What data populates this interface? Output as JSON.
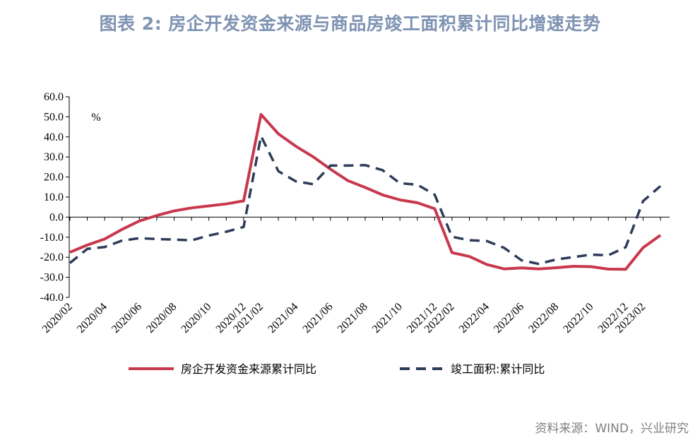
{
  "header": {
    "title": "图表 2:  房企开发资金来源与商品房竣工面积累计同比增速走势"
  },
  "footer": {
    "source": "资料来源：WIND，兴业研究"
  },
  "colors": {
    "series1": "#c8384d",
    "series2": "#2e3c58",
    "title": "#7f93b3"
  },
  "chart_data": {
    "type": "line",
    "unit_label": "%",
    "ylim": [
      -40,
      60
    ],
    "y_ticks": [
      "60.0",
      "50.0",
      "40.0",
      "30.0",
      "20.0",
      "10.0",
      "0.0",
      "-10.0",
      "-20.0",
      "-30.0",
      "-40.0"
    ],
    "x": [
      "2020/02",
      "2020/03",
      "2020/04",
      "2020/05",
      "2020/06",
      "2020/07",
      "2020/08",
      "2020/09",
      "2020/10",
      "2020/11",
      "2020/12",
      "2021/02",
      "2021/03",
      "2021/04",
      "2021/05",
      "2021/06",
      "2021/07",
      "2021/08",
      "2021/09",
      "2021/10",
      "2021/11",
      "2021/12",
      "2022/02",
      "2022/03",
      "2022/04",
      "2022/05",
      "2022/06",
      "2022/07",
      "2022/08",
      "2022/09",
      "2022/10",
      "2022/11",
      "2022/12",
      "2023/02",
      "2023/03"
    ],
    "x_tick_labels": [
      "2020/02",
      "2020/04",
      "2020/06",
      "2020/08",
      "2020/10",
      "2020/12",
      "2021/02",
      "2021/04",
      "2021/06",
      "2021/08",
      "2021/10",
      "2021/12",
      "2022/02",
      "2022/04",
      "2022/06",
      "2022/08",
      "2022/10",
      "2022/12",
      "2023/02"
    ],
    "series": [
      {
        "name": "房企开发资金来源累计同比",
        "style": "solid",
        "values": [
          -17.5,
          -13.9,
          -10.9,
          -6.1,
          -1.9,
          0.8,
          3.1,
          4.6,
          5.6,
          6.6,
          8.1,
          51.2,
          41.5,
          35.4,
          30.1,
          23.9,
          18.2,
          14.8,
          11.1,
          8.6,
          7.2,
          4.2,
          -17.7,
          -19.6,
          -23.6,
          -25.8,
          -25.3,
          -25.8,
          -25.2,
          -24.5,
          -24.7,
          -25.9,
          -26.0,
          -15.2,
          -9.0
        ]
      },
      {
        "name": "竣工面积:累计同比",
        "style": "dashed",
        "values": [
          -22.9,
          -15.8,
          -14.9,
          -11.7,
          -10.5,
          -10.9,
          -11.2,
          -11.6,
          -9.2,
          -7.3,
          -4.9,
          40.4,
          22.9,
          17.9,
          16.4,
          25.7,
          25.7,
          25.9,
          23.4,
          16.9,
          16.2,
          11.2,
          -9.8,
          -11.5,
          -11.9,
          -15.3,
          -21.5,
          -23.3,
          -21.1,
          -19.9,
          -18.7,
          -19.0,
          -15.0,
          8.0,
          15.5
        ]
      }
    ],
    "legend_position": "bottom",
    "grid": false
  }
}
